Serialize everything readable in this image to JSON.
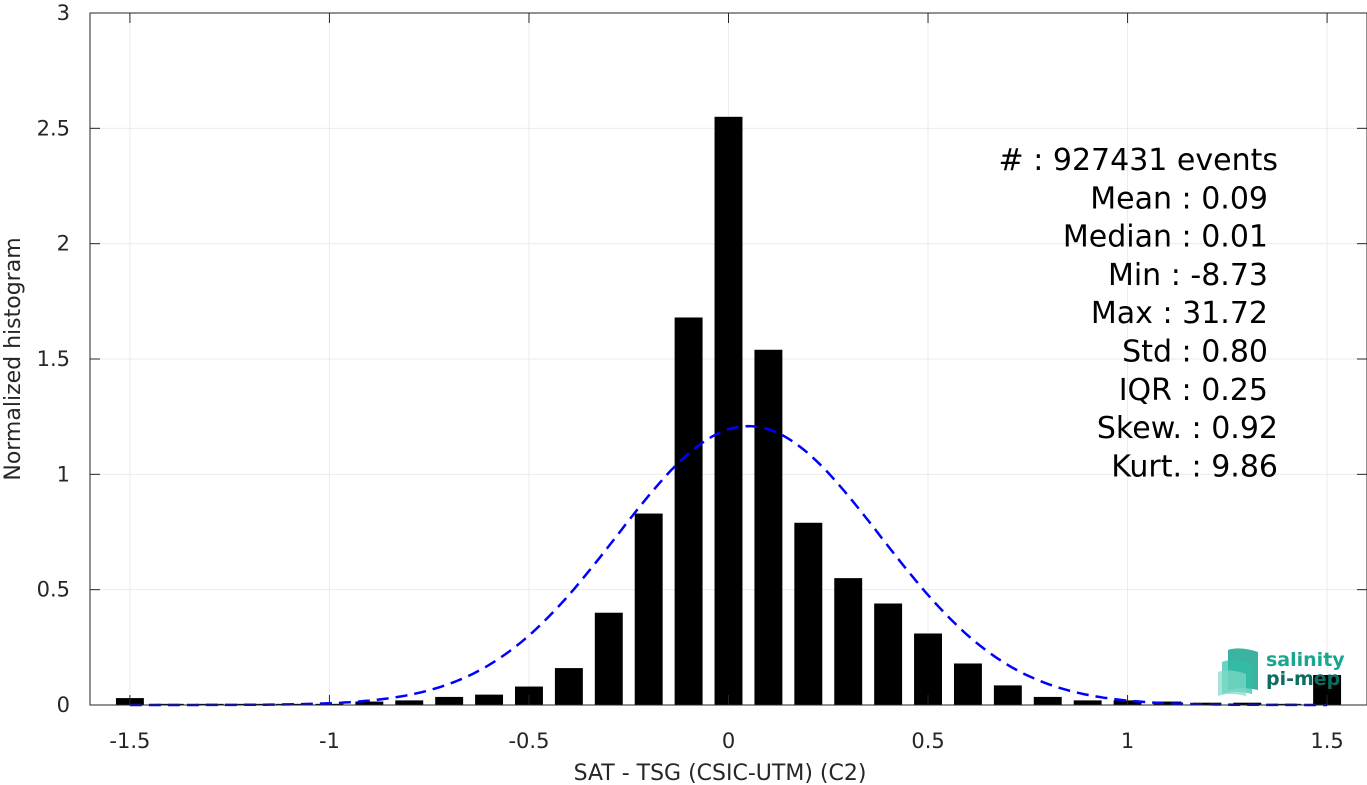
{
  "chart_data": {
    "type": "bar",
    "xlabel": "SAT - TSG (CSIC-UTM) (C2)",
    "ylabel": "Normalized histogram",
    "xlim": [
      -1.6,
      1.6
    ],
    "ylim": [
      0,
      3
    ],
    "xticks": [
      "-1.5",
      "-1",
      "-0.5",
      "0",
      "0.5",
      "1",
      "1.5"
    ],
    "xtick_values": [
      -1.5,
      -1,
      -0.5,
      0,
      0.5,
      1,
      1.5
    ],
    "yticks": [
      "0",
      "0.5",
      "1",
      "1.5",
      "2",
      "2.5",
      "3"
    ],
    "ytick_values": [
      0,
      0.5,
      1,
      1.5,
      2,
      2.5,
      3
    ],
    "grid": true,
    "bar_color": "#000000",
    "bins": [
      {
        "x": -1.5,
        "y": 0.03
      },
      {
        "x": -1.4,
        "y": 0.005
      },
      {
        "x": -1.3,
        "y": 0.005
      },
      {
        "x": -1.2,
        "y": 0.005
      },
      {
        "x": -1.1,
        "y": 0.005
      },
      {
        "x": -1.0,
        "y": 0.005
      },
      {
        "x": -0.9,
        "y": 0.015
      },
      {
        "x": -0.8,
        "y": 0.02
      },
      {
        "x": -0.7,
        "y": 0.035
      },
      {
        "x": -0.6,
        "y": 0.045
      },
      {
        "x": -0.5,
        "y": 0.08
      },
      {
        "x": -0.4,
        "y": 0.16
      },
      {
        "x": -0.3,
        "y": 0.4
      },
      {
        "x": -0.2,
        "y": 0.83
      },
      {
        "x": -0.1,
        "y": 1.68
      },
      {
        "x": 0.0,
        "y": 2.55
      },
      {
        "x": 0.1,
        "y": 1.54
      },
      {
        "x": 0.2,
        "y": 0.79
      },
      {
        "x": 0.3,
        "y": 0.55
      },
      {
        "x": 0.4,
        "y": 0.44
      },
      {
        "x": 0.5,
        "y": 0.31
      },
      {
        "x": 0.6,
        "y": 0.18
      },
      {
        "x": 0.7,
        "y": 0.085
      },
      {
        "x": 0.8,
        "y": 0.035
      },
      {
        "x": 0.9,
        "y": 0.02
      },
      {
        "x": 1.0,
        "y": 0.02
      },
      {
        "x": 1.1,
        "y": 0.015
      },
      {
        "x": 1.2,
        "y": 0.01
      },
      {
        "x": 1.3,
        "y": 0.01
      },
      {
        "x": 1.4,
        "y": 0.005
      },
      {
        "x": 1.5,
        "y": 0.13
      }
    ],
    "fit": {
      "type": "gaussian",
      "mean": 0.05,
      "std": 0.33,
      "color": "#0000ff",
      "style": "dashed"
    },
    "stats": [
      "#   : 927431 events",
      "Mean : 0.09",
      "Median : 0.01",
      "Min : -8.73",
      "Max : 31.72",
      "Std : 0.80",
      "IQR : 0.25",
      "Skew. : 0.92",
      "Kurt. : 9.86"
    ]
  },
  "logo": {
    "line1": "salinity",
    "line2": "pi-mep",
    "color1": "#1aa591",
    "color2": "#0e6b5f"
  }
}
